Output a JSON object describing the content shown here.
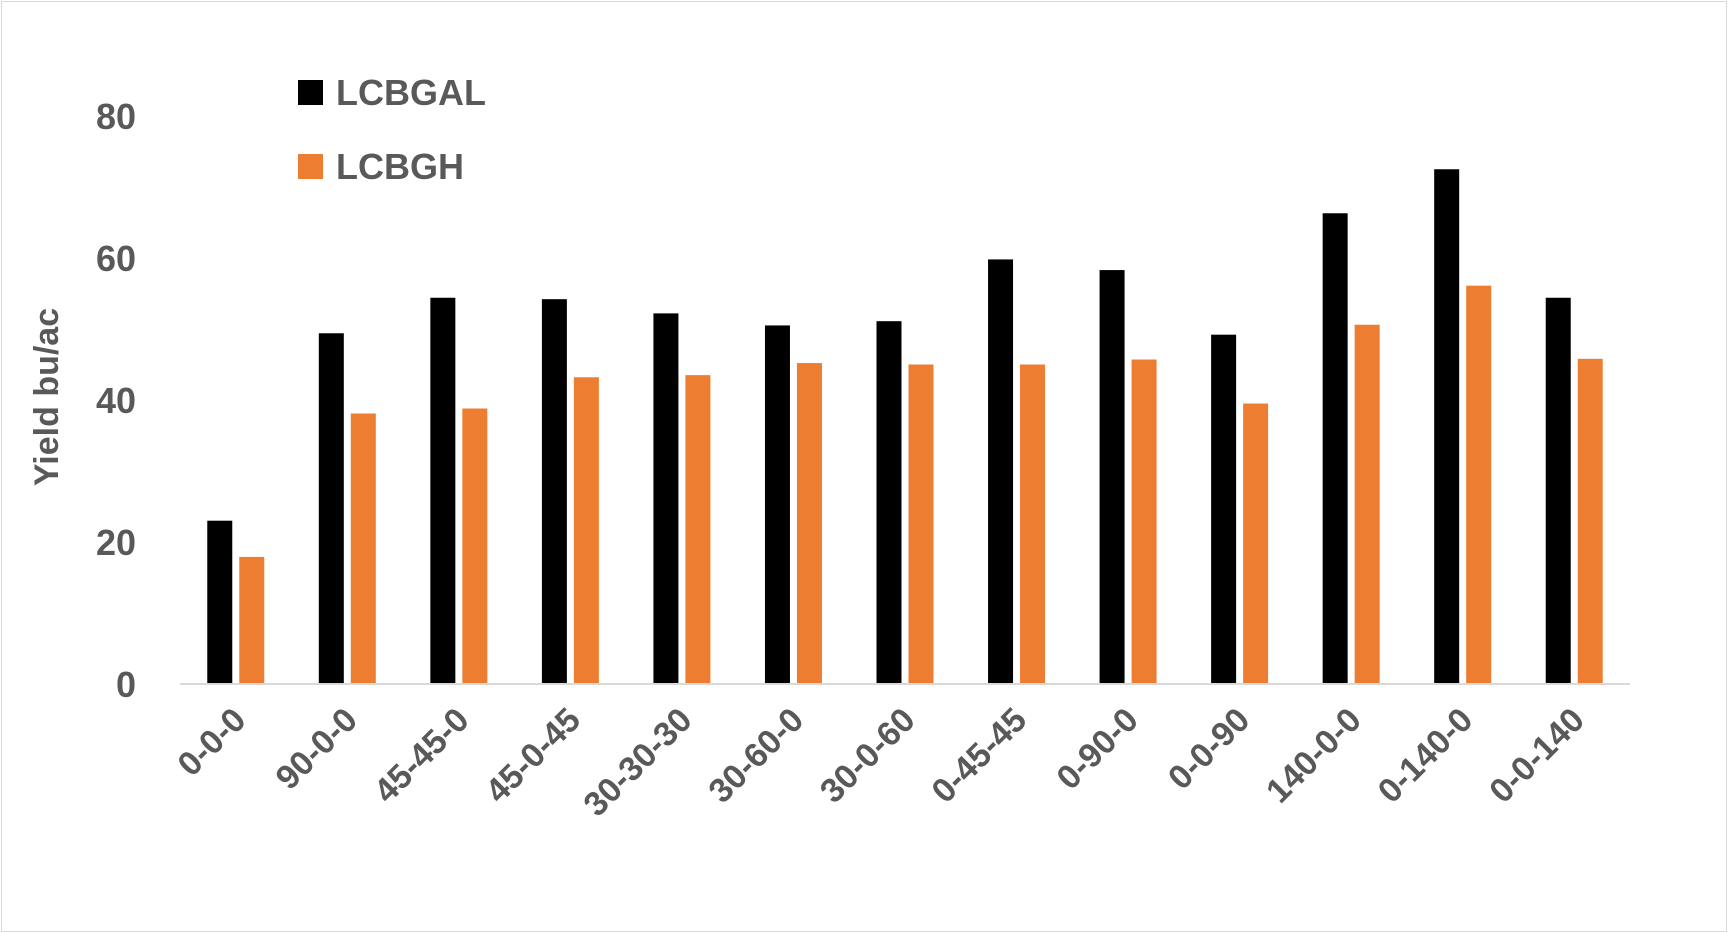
{
  "chart_data": {
    "type": "bar",
    "title": "",
    "xlabel": "",
    "ylabel": "Yield bu/ac",
    "ylim": [
      0,
      80
    ],
    "yticks": [
      0,
      20,
      40,
      60,
      80
    ],
    "grid": false,
    "legend": "top-left",
    "categories": [
      "0-0-0",
      "90-0-0",
      "45-45-0",
      "45-0-45",
      "30-30-30",
      "30-60-0",
      "30-0-60",
      "0-45-45",
      "0-90-0",
      "0-0-90",
      "140-0-0",
      "0-140-0",
      "0-0-140"
    ],
    "series": [
      {
        "name": "LCBGAL",
        "color": "#000000",
        "values": [
          23.0,
          49.4,
          54.4,
          54.2,
          52.2,
          50.5,
          51.1,
          59.8,
          58.3,
          49.2,
          66.3,
          72.5,
          54.4
        ]
      },
      {
        "name": "LCBGH",
        "color": "#ED7D31",
        "values": [
          17.9,
          38.1,
          38.8,
          43.2,
          43.5,
          45.2,
          45.0,
          45.0,
          45.7,
          39.5,
          50.6,
          56.1,
          45.8
        ]
      }
    ]
  }
}
